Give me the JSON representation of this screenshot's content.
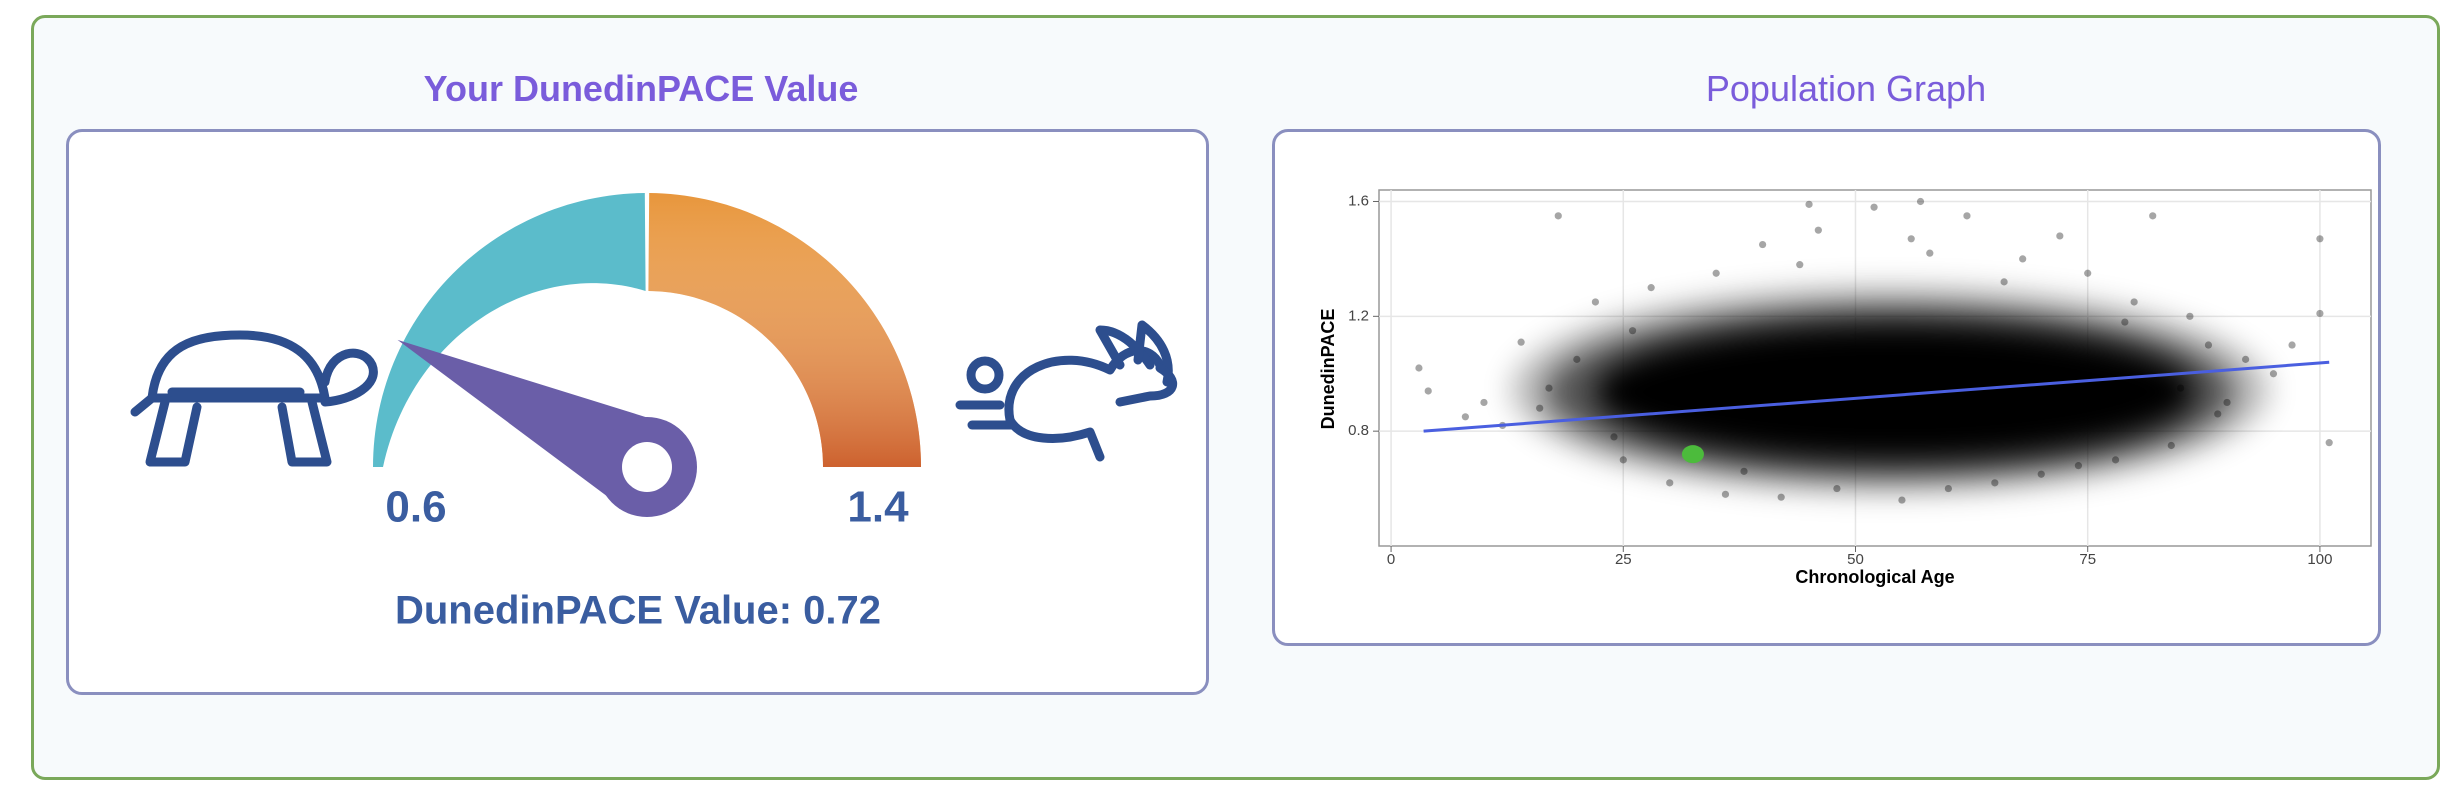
{
  "chart_data": [
    {
      "type": "gauge",
      "title": "Your DunedinPACE Value",
      "ylim": [
        0.6,
        1.4
      ],
      "yticks": [
        0.6,
        1.4
      ],
      "values": [
        0.72
      ],
      "value_labels": [
        "DunedinPACE Value: 0.72"
      ],
      "bands": [
        {
          "from": 0.6,
          "to": 1.0,
          "color": "#5bbccb"
        },
        {
          "from": 1.0,
          "to": 1.4,
          "color": "#e8963c"
        }
      ],
      "needle_color": "#6a5ea8",
      "label_color": "#3a5da0"
    },
    {
      "type": "scatter",
      "title": "Population Graph",
      "x_label": "Chronological Age",
      "y_label": "DunedinPACE",
      "xlim": [
        -1.3,
        105.5
      ],
      "ylim": [
        0.4,
        1.64
      ],
      "xticks": [
        0,
        25,
        50,
        75,
        100
      ],
      "yticks": [
        0.8,
        1.2,
        1.6
      ],
      "grid": true,
      "x": [
        3,
        4,
        8,
        14,
        18,
        17,
        22,
        25,
        28,
        30,
        35,
        36,
        40,
        42,
        46,
        48,
        52,
        55,
        58,
        60,
        62,
        65,
        68,
        70,
        72,
        75,
        78,
        80,
        82,
        84,
        86,
        88,
        90,
        92,
        95,
        100,
        100,
        101,
        97,
        10,
        12,
        20,
        24,
        26,
        38,
        44,
        56,
        66,
        74,
        79,
        85,
        89,
        16,
        57,
        45
      ],
      "series": [
        {
          "color": "#000000",
          "values": [
            1.02,
            0.94,
            0.85,
            1.11,
            1.55,
            0.95,
            1.25,
            0.7,
            1.3,
            0.62,
            1.35,
            0.58,
            1.45,
            0.57,
            1.5,
            0.6,
            1.58,
            0.56,
            1.42,
            0.6,
            1.55,
            0.62,
            1.4,
            0.65,
            1.48,
            1.35,
            0.7,
            1.25,
            1.55,
            0.75,
            1.2,
            1.1,
            0.9,
            1.05,
            1.0,
            1.47,
            1.21,
            0.76,
            1.1,
            0.9,
            0.82,
            1.05,
            0.78,
            1.15,
            0.66,
            1.38,
            1.47,
            1.32,
            0.68,
            1.18,
            0.95,
            0.86,
            0.88,
            1.6,
            1.59
          ]
        }
      ],
      "trend": {
        "x": [
          3.5,
          101
        ],
        "y": [
          0.8,
          1.04
        ],
        "color": "#4a5fe0"
      },
      "highlight": {
        "x": 32.5,
        "y": 0.72,
        "color": "#4cbb3c"
      }
    }
  ]
}
